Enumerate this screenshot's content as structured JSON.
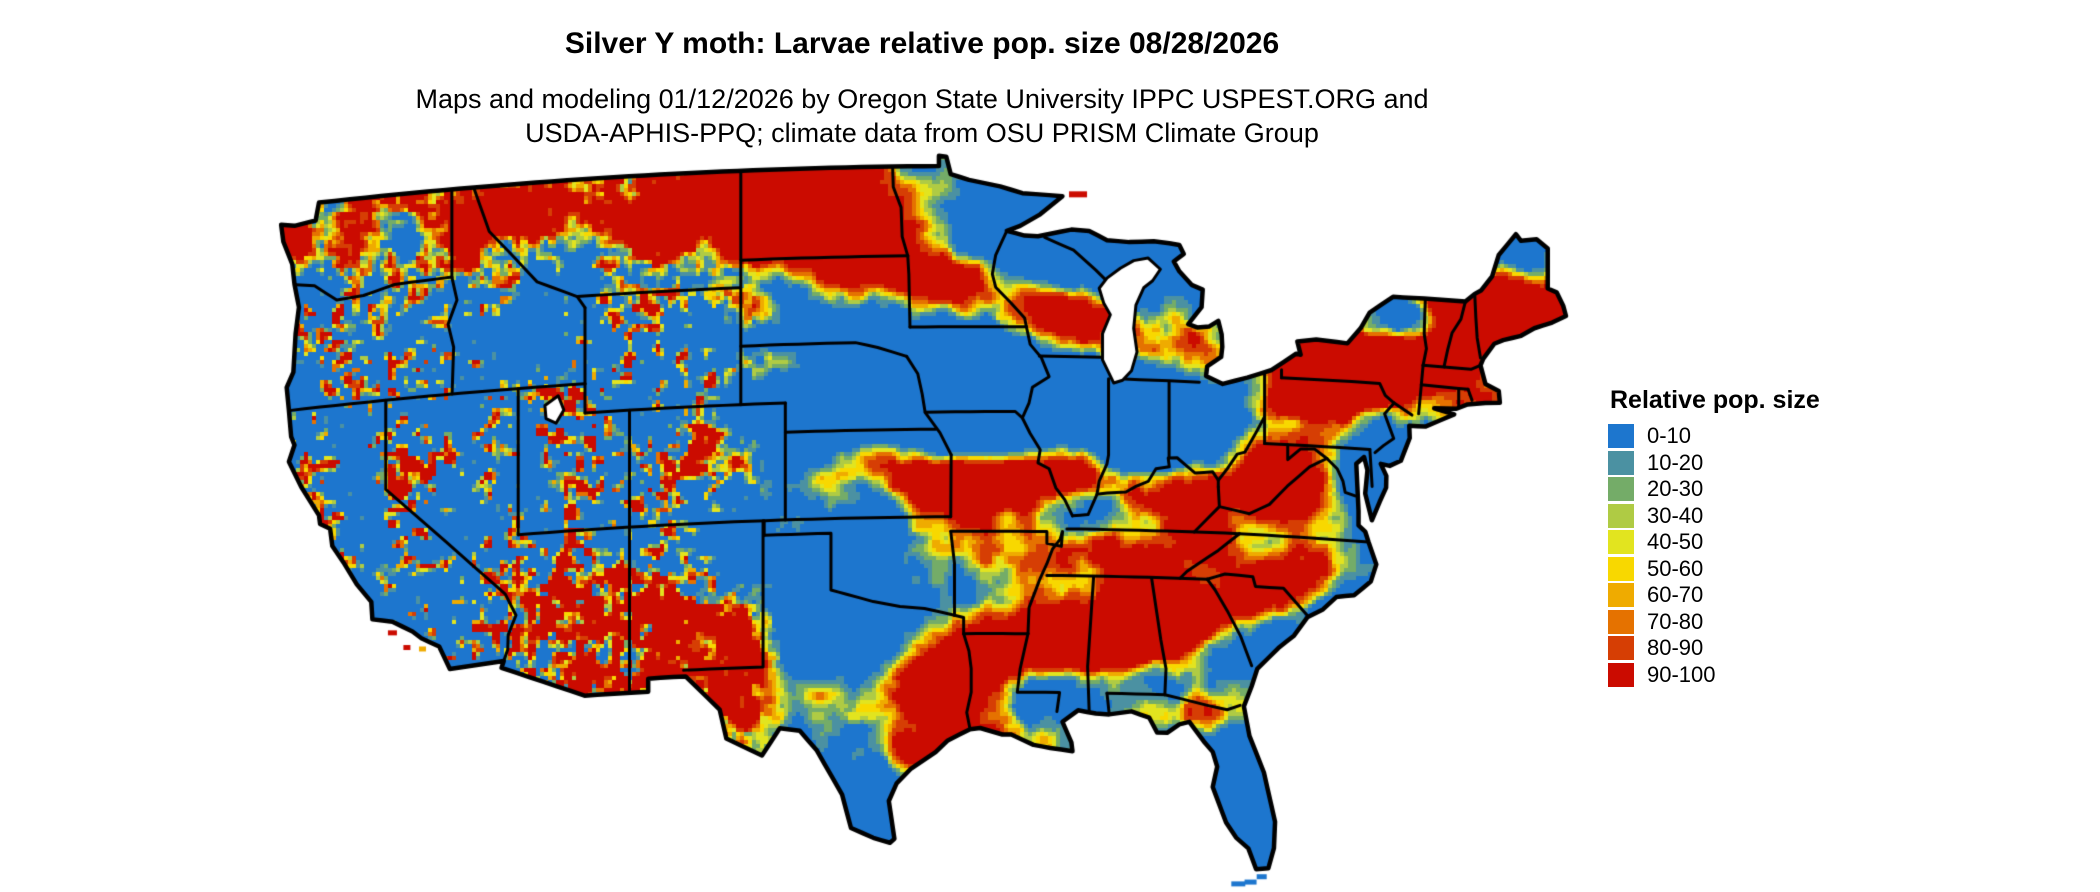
{
  "header": {
    "title": "Silver Y moth: Larvae relative pop. size 08/28/2026",
    "subtitle_line1": "Maps and modeling 01/12/2026 by Oregon State University IPPC USPEST.ORG and",
    "subtitle_line2": "USDA-APHIS-PPQ; climate data from OSU PRISM Climate Group"
  },
  "legend": {
    "title": "Relative pop. size",
    "items": [
      {
        "label": "0-10",
        "color": "#1D76CE"
      },
      {
        "label": "10-20",
        "color": "#4B91A2"
      },
      {
        "label": "20-30",
        "color": "#74AC68"
      },
      {
        "label": "30-40",
        "color": "#AFCB44"
      },
      {
        "label": "40-50",
        "color": "#E2E41F"
      },
      {
        "label": "50-60",
        "color": "#F8D800"
      },
      {
        "label": "60-70",
        "color": "#EFAB00"
      },
      {
        "label": "70-80",
        "color": "#E57200"
      },
      {
        "label": "80-90",
        "color": "#D63E04"
      },
      {
        "label": "90-100",
        "color": "#CB0B00"
      }
    ]
  },
  "map": {
    "area_label": "Contiguous United States",
    "background_color": "#FFFFFF",
    "boundary_color": "#000000",
    "lake_color": "#FFFFFF"
  }
}
